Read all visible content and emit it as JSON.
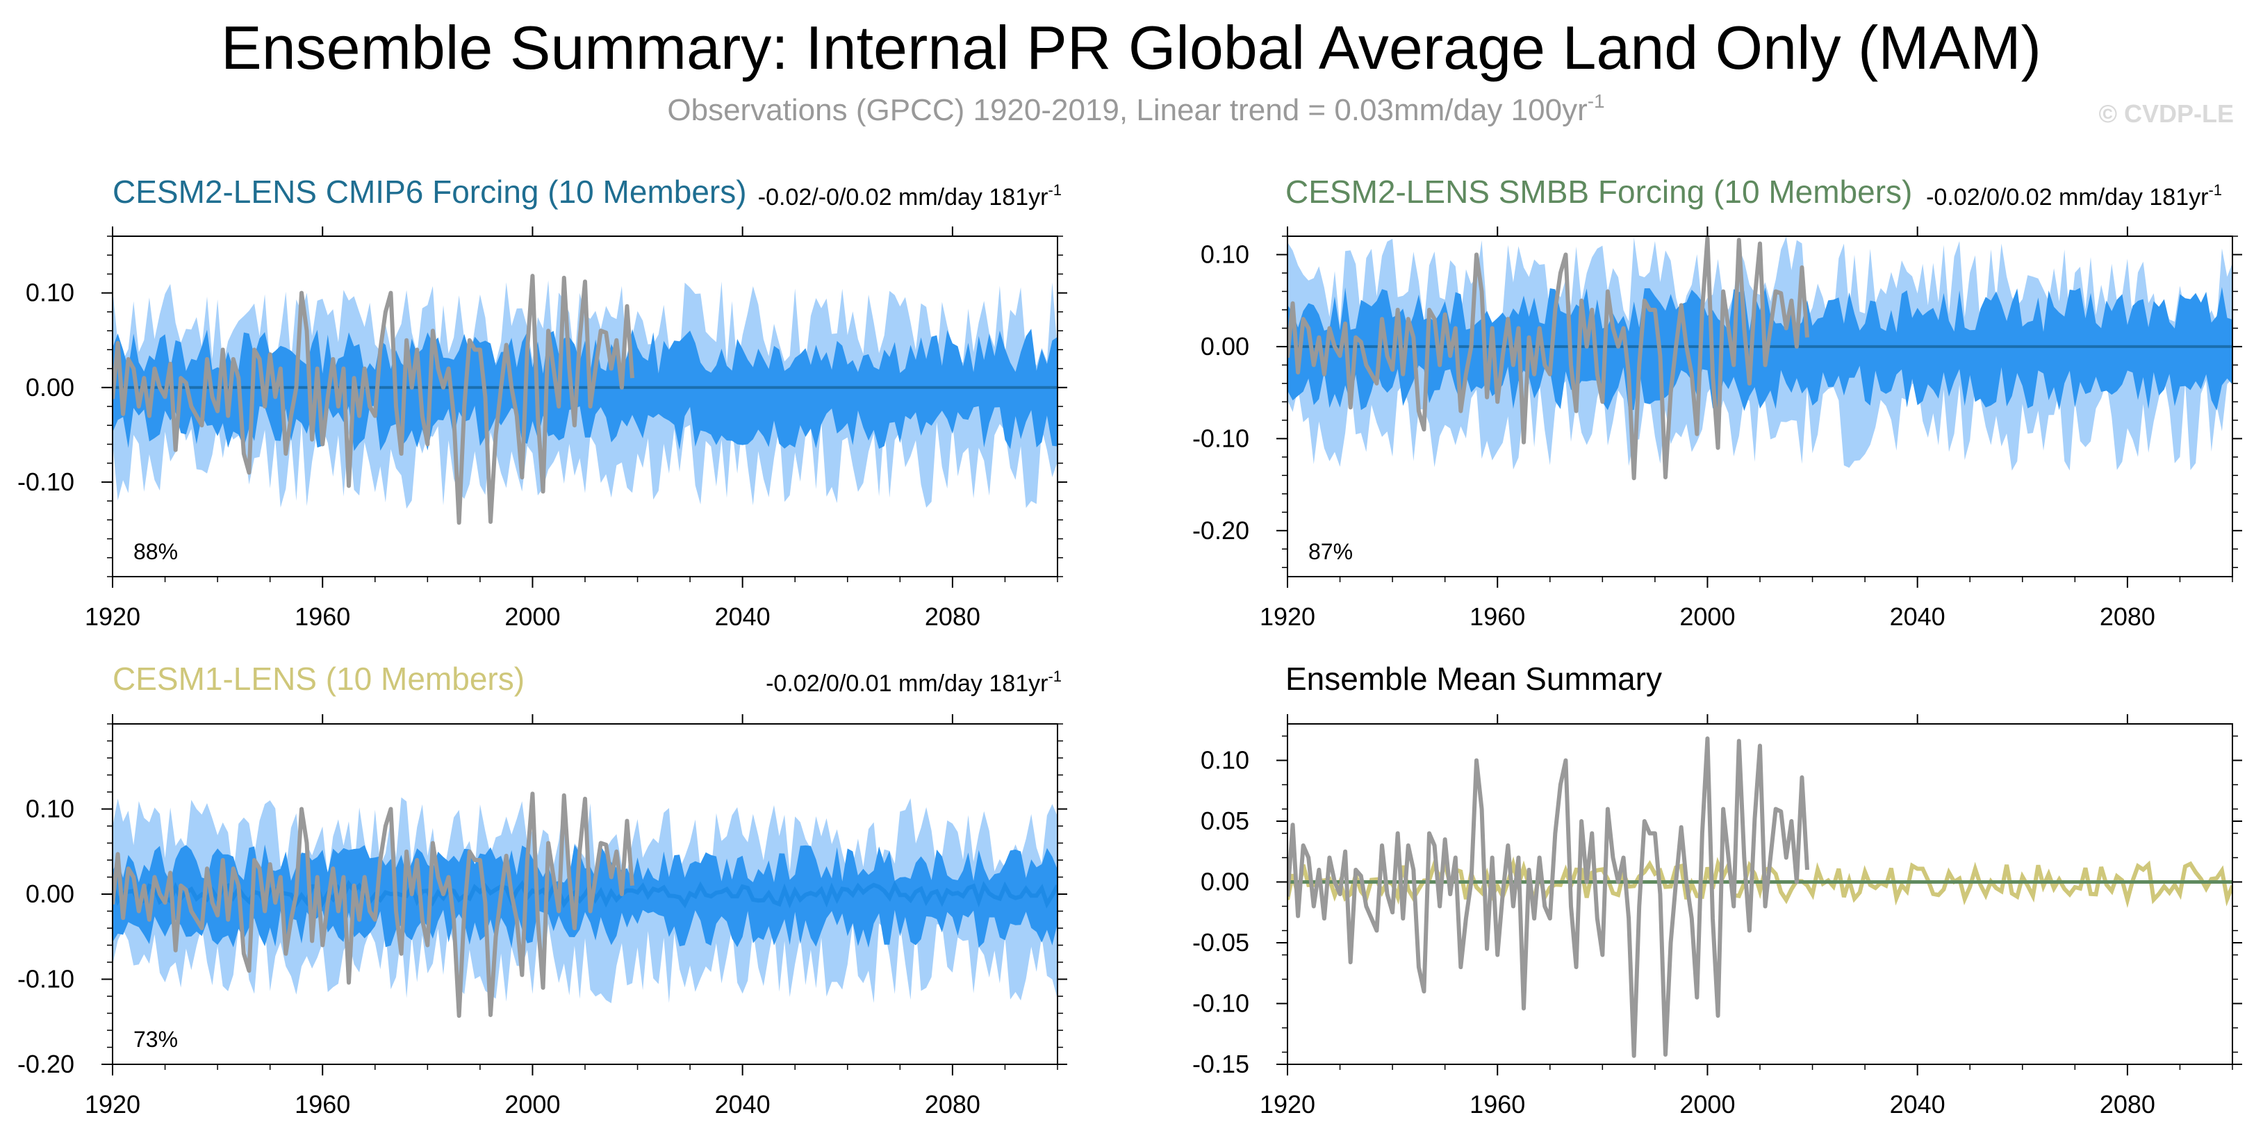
{
  "title": "Ensemble Summary: Internal PR Global Average Land Only (MAM)",
  "subtitle": "Observations (GPCC) 1920-2019, Linear trend = 0.03mm/day 100yr",
  "subtitle_sup": "-1",
  "credit": "© CVDP-LE",
  "colors": {
    "obs": "#999999",
    "envelope_outer": "#a6d0fa",
    "envelope_inner": "#2e95f0",
    "cmip6_title": "#1f6e91",
    "smbb_title": "#5f8a5f",
    "cesm1_title": "#cfc77a",
    "cesm1_mean": "#c8c070",
    "mean_line": "#1a6fb0"
  },
  "chart_data": [
    {
      "id": "p1",
      "type": "area",
      "title": "CESM2-LENS CMIP6 Forcing (10 Members)",
      "trend_text": "-0.02/-0/0.02 mm/day 181yr",
      "trend_sup": "-1",
      "percent": "88%",
      "xlim": [
        1920,
        2100
      ],
      "ylim": [
        -0.2,
        0.16
      ],
      "xticks": [
        "1920",
        "1960",
        "2000",
        "2040",
        "2080"
      ],
      "yticks": [
        "0.10",
        "0.00",
        "-0.10"
      ],
      "outer_amp": 0.095,
      "inner_amp": 0.048,
      "mean_amp": 0.0,
      "seed": 11
    },
    {
      "id": "p2",
      "type": "area",
      "title": "CESM2-LENS SMBB Forcing (10 Members)",
      "trend_text": "-0.02/0/0.02 mm/day 181yr",
      "trend_sup": "-1",
      "percent": "87%",
      "xlim": [
        1920,
        2100
      ],
      "ylim": [
        -0.25,
        0.12
      ],
      "xticks": [
        "1920",
        "1960",
        "2000",
        "2040",
        "2080"
      ],
      "yticks": [
        "0.10",
        "0.00",
        "-0.10",
        "-0.20"
      ],
      "outer_amp": 0.1,
      "inner_amp": 0.05,
      "mean_amp": 0.0,
      "seed": 23
    },
    {
      "id": "p3",
      "type": "area",
      "title": "CESM1-LENS (10 Members)",
      "trend_text": "-0.02/0/0.01 mm/day 181yr",
      "trend_sup": "-1",
      "percent": "73%",
      "xlim": [
        1920,
        2100
      ],
      "ylim": [
        -0.2,
        0.2
      ],
      "xticks": [
        "1920",
        "1960",
        "2000",
        "2040",
        "2080"
      ],
      "yticks": [
        "0.10",
        "0.00",
        "-0.10",
        "-0.20"
      ],
      "outer_amp": 0.095,
      "inner_amp": 0.045,
      "mean_amp": 0.012,
      "seed": 37
    },
    {
      "id": "p4",
      "type": "line",
      "title": "Ensemble Mean Summary",
      "xlim": [
        1920,
        2100
      ],
      "ylim": [
        -0.15,
        0.13
      ],
      "xticks": [
        "1920",
        "1960",
        "2000",
        "2040",
        "2080"
      ],
      "yticks": [
        "0.10",
        "0.05",
        "0.00",
        "-0.05",
        "-0.10",
        "-0.15"
      ],
      "series": [
        {
          "name": "CESM1-LENS ensemble mean",
          "color": "#cfc77a",
          "seed": 53,
          "amp": 0.015
        },
        {
          "name": "CESM2-LENS ensemble mean",
          "color": "#5f8a5f",
          "flat": true
        }
      ]
    }
  ],
  "obs_series": {
    "name": "GPCC observations",
    "start_year": 1920,
    "values": [
      -0.012,
      0.047,
      -0.028,
      0.03,
      0.02,
      -0.02,
      0.01,
      -0.03,
      0.02,
      0.0,
      -0.01,
      0.025,
      -0.066,
      0.01,
      0.005,
      -0.02,
      -0.03,
      -0.04,
      0.03,
      -0.01,
      -0.025,
      0.04,
      -0.03,
      0.03,
      0.01,
      -0.07,
      -0.09,
      0.04,
      0.03,
      -0.02,
      0.035,
      -0.01,
      0.02,
      -0.07,
      -0.03,
      0.0,
      0.1,
      0.06,
      -0.055,
      0.02,
      -0.06,
      -0.01,
      0.03,
      -0.02,
      0.02,
      -0.104,
      0.01,
      -0.03,
      0.02,
      -0.02,
      -0.03,
      0.04,
      0.08,
      0.1,
      -0.02,
      -0.07,
      0.05,
      0.0,
      0.04,
      -0.03,
      -0.06,
      0.06,
      0.02,
      0.0,
      0.02,
      -0.03,
      -0.143,
      -0.02,
      0.05,
      0.04,
      0.04,
      -0.01,
      -0.142,
      -0.05,
      0.0,
      0.045,
      0.0,
      -0.03,
      -0.095,
      0.04,
      0.118,
      -0.03,
      -0.11,
      0.06,
      0.02,
      -0.02,
      0.116,
      0.02,
      -0.04,
      0.052,
      0.112,
      -0.02,
      0.02,
      0.06,
      0.058,
      0.02,
      0.05,
      0.0,
      0.086,
      0.01
    ]
  }
}
